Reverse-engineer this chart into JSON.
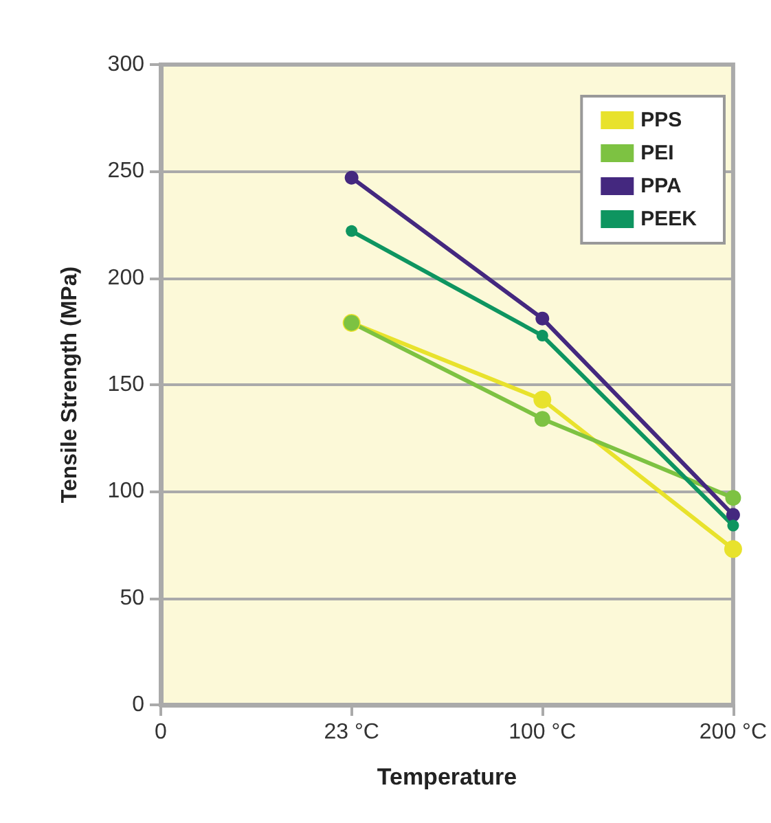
{
  "chart_data": {
    "type": "line",
    "xlabel": "Temperature",
    "ylabel": "Tensile Strength (MPa)",
    "categories": [
      "0",
      "23 °C",
      "100 °C",
      "200 °C"
    ],
    "series": [
      {
        "name": "PPS",
        "color": "#e8e22c",
        "values": [
          null,
          179,
          143,
          73
        ]
      },
      {
        "name": "PEI",
        "color": "#7dc242",
        "values": [
          null,
          179,
          134,
          97
        ]
      },
      {
        "name": "PPA",
        "color": "#44287f",
        "values": [
          null,
          247,
          181,
          89
        ]
      },
      {
        "name": "PEEK",
        "color": "#0e9560",
        "values": [
          null,
          222,
          173,
          84
        ]
      }
    ],
    "ylim": [
      0,
      300
    ],
    "yticks": [
      0,
      50,
      100,
      150,
      200,
      250,
      300
    ],
    "grid": "y",
    "legend": "top right",
    "marker": "circle",
    "line_style": "solid"
  }
}
